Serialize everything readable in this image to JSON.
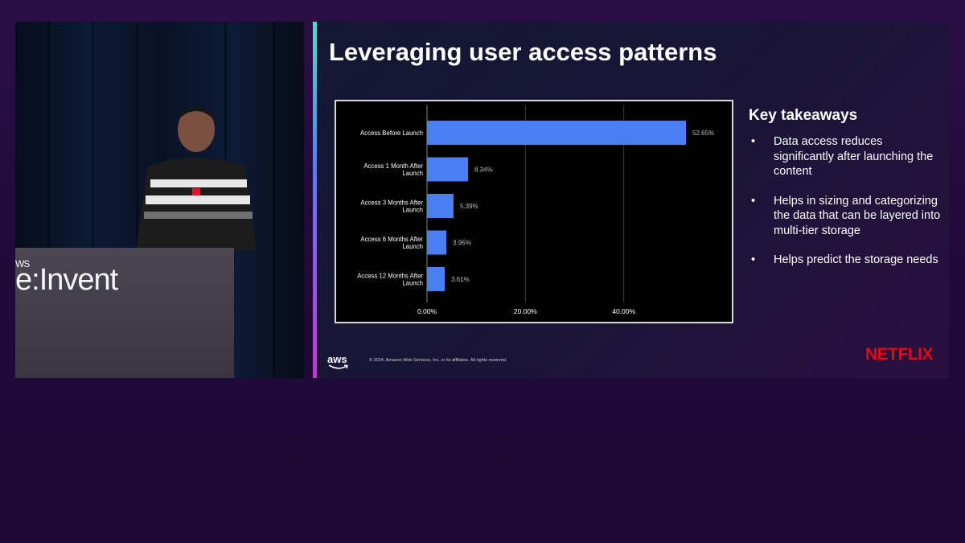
{
  "video": {
    "event_logo_prefix": "WS",
    "event_logo_text": "e:Invent"
  },
  "slide": {
    "title": "Leveraging user access patterns",
    "takeaways_heading": "Key takeaways",
    "bullet_char": "•",
    "takeaways": [
      "Data access reduces significantly after launching the content",
      "Helps in sizing and categorizing the data that can be layered into multi-tier storage",
      "Helps predict the storage needs"
    ],
    "footer": {
      "aws_logo": "aws",
      "copyright": "© 2024, Amazon Web Services, Inc. or its affiliates. All rights reserved.",
      "brand": "NETFLIX"
    }
  },
  "colors": {
    "bar": "#4a7ef2",
    "chart_background": "#000000",
    "brand_red": "#e50914"
  },
  "chart_data": {
    "type": "bar",
    "orientation": "horizontal",
    "categories": [
      [
        "Access Before Launch"
      ],
      [
        "Access 1 Month After",
        "Launch"
      ],
      [
        "Access 3 Months After",
        "Launch"
      ],
      [
        "Access 6 Months After",
        "Launch"
      ],
      [
        "Access 12 Months After",
        "Launch"
      ]
    ],
    "values": [
      52.65,
      8.34,
      5.39,
      3.95,
      3.61
    ],
    "value_labels": [
      "52.65%",
      "8.34%",
      "5.39%",
      "3.95%",
      "3.61%"
    ],
    "xticks": [
      0,
      20,
      40
    ],
    "xtick_labels": [
      "0.00%",
      "20.00%",
      "40.00%"
    ],
    "xlim": [
      0,
      60
    ],
    "grid": true
  }
}
